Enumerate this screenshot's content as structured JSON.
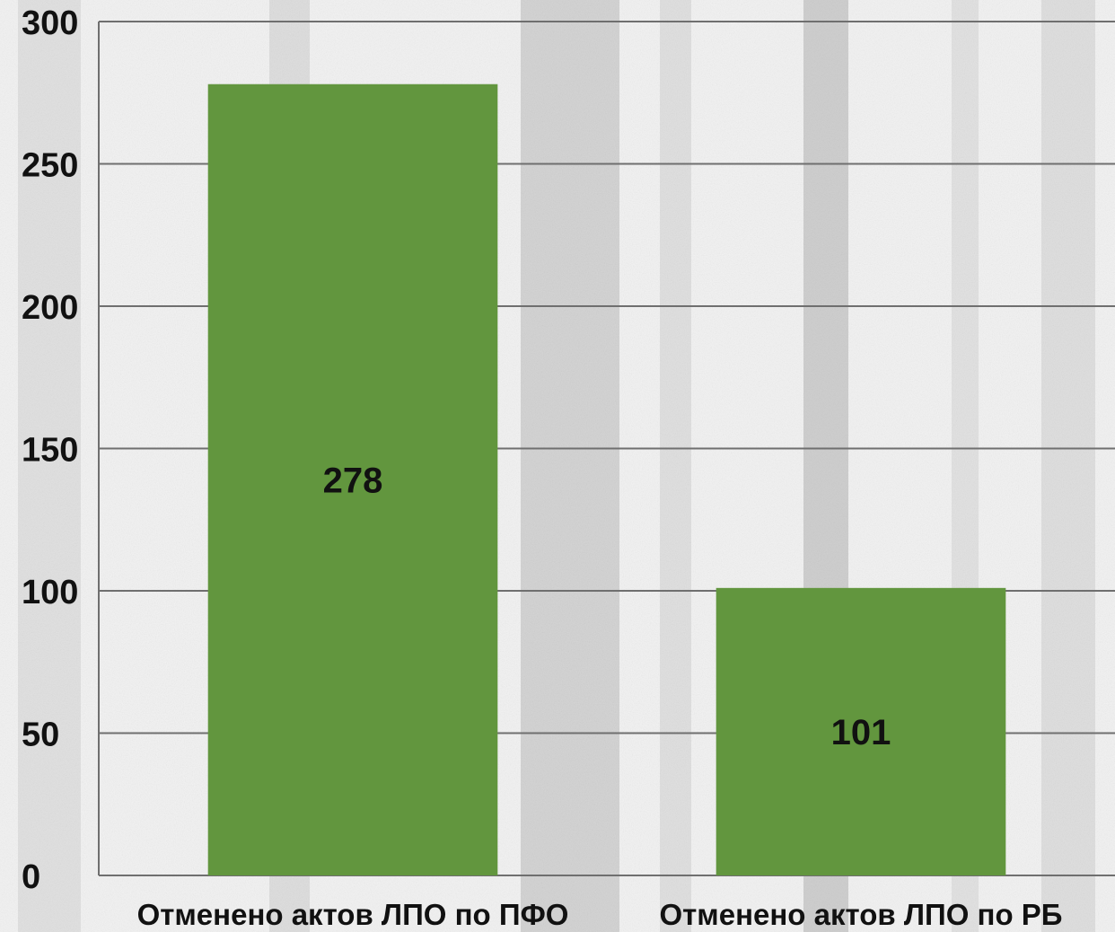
{
  "chart_data": {
    "type": "bar",
    "categories": [
      "Отменено актов ЛПО по ПФО",
      "Отменено актов ЛПО по РБ"
    ],
    "values": [
      278,
      101
    ],
    "data_labels": [
      "278",
      "101"
    ],
    "title": "",
    "xlabel": "",
    "ylabel": "",
    "ylim": [
      0,
      300
    ],
    "yticks": [
      0,
      50,
      100,
      150,
      200,
      250,
      300
    ],
    "ytick_labels": [
      "0",
      "50",
      "100",
      "150",
      "200",
      "250",
      "300"
    ],
    "grid": true,
    "legend": "none",
    "colors": {
      "bar": "#62963e",
      "grid": "#6f6f6f",
      "background": "#f2f2f2",
      "trunks": "#c8c8c8"
    }
  }
}
